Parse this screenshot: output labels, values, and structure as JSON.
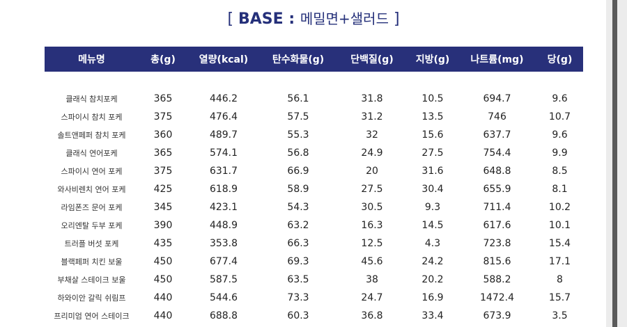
{
  "title": {
    "open": "[ ",
    "strong": "BASE : ",
    "sub": "메밀면+샐러드",
    "close": " ]"
  },
  "table": {
    "headers": [
      "메뉴명",
      "총(g)",
      "열량(kcal)",
      "탄수화물(g)",
      "단백질(g)",
      "지방(g)",
      "나트륨(mg)",
      "당(g)"
    ],
    "rows": [
      [
        "클래식 참치포케",
        "365",
        "446.2",
        "56.1",
        "31.8",
        "10.5",
        "694.7",
        "9.6"
      ],
      [
        "스파이시 참치 포케",
        "375",
        "476.4",
        "57.5",
        "31.2",
        "13.5",
        "746",
        "10.7"
      ],
      [
        "솔트앤페퍼 참치 포케",
        "360",
        "489.7",
        "55.3",
        "32",
        "15.6",
        "637.7",
        "9.6"
      ],
      [
        "클래식 연어포케",
        "365",
        "574.1",
        "56.8",
        "24.9",
        "27.5",
        "754.4",
        "9.9"
      ],
      [
        "스파이시 연어 포케",
        "375",
        "631.7",
        "66.9",
        "20",
        "31.6",
        "648.8",
        "8.5"
      ],
      [
        "와사비렌치 연어 포케",
        "425",
        "618.9",
        "58.9",
        "27.5",
        "30.4",
        "655.9",
        "8.1"
      ],
      [
        "라임폰즈 문어 포케",
        "345",
        "423.1",
        "54.3",
        "30.5",
        "9.3",
        "711.4",
        "10.2"
      ],
      [
        "오리엔탈 두부 포케",
        "390",
        "448.9",
        "63.2",
        "16.3",
        "14.5",
        "617.6",
        "10.1"
      ],
      [
        "트러플 버섯 포케",
        "435",
        "353.8",
        "66.3",
        "12.5",
        "4.3",
        "723.8",
        "15.4"
      ],
      [
        "블랙페퍼 치킨 보울",
        "450",
        "677.4",
        "69.3",
        "45.6",
        "24.2",
        "815.6",
        "17.1"
      ],
      [
        "부채살 스테이크 보울",
        "450",
        "587.5",
        "63.5",
        "38",
        "20.2",
        "588.2",
        "8"
      ],
      [
        "하와이안 갈릭 쉬림프",
        "440",
        "544.6",
        "73.3",
        "24.7",
        "16.9",
        "1472.4",
        "15.7"
      ],
      [
        "프리미엄 연어 스테이크",
        "440",
        "688.8",
        "60.3",
        "36.8",
        "33.4",
        "673.9",
        "3.5"
      ]
    ]
  }
}
